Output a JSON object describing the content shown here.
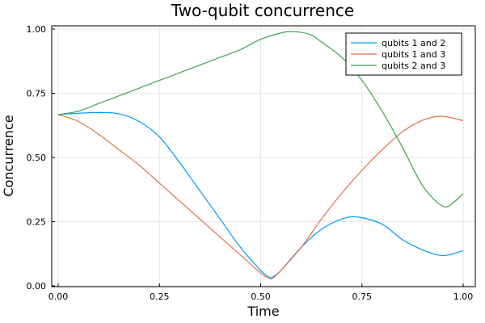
{
  "chart_data": {
    "type": "line",
    "title": "Two-qubit concurrence",
    "xlabel": "Time",
    "ylabel": "Concurrence",
    "xlim": [
      0,
      1
    ],
    "ylim": [
      0,
      1
    ],
    "xticks": [
      0,
      0.25,
      0.5,
      0.75,
      1
    ],
    "xtick_labels": [
      "0.00",
      "0.25",
      "0.50",
      "0.75",
      "1.00"
    ],
    "yticks": [
      0,
      0.25,
      0.5,
      0.75,
      1
    ],
    "ytick_labels": [
      "0.00",
      "0.25",
      "0.50",
      "0.75",
      "1.00"
    ],
    "grid": true,
    "legend_position": "top-right",
    "series": [
      {
        "name": "qubits 1 and 2",
        "color": "#009AFA",
        "x": [
          0,
          0.05,
          0.1,
          0.15,
          0.2,
          0.25,
          0.3,
          0.35,
          0.4,
          0.45,
          0.5,
          0.52,
          0.53,
          0.55,
          0.6,
          0.65,
          0.7,
          0.74,
          0.8,
          0.85,
          0.9,
          0.95,
          1.0
        ],
        "y": [
          0.667,
          0.672,
          0.675,
          0.67,
          0.64,
          0.58,
          0.48,
          0.37,
          0.26,
          0.15,
          0.06,
          0.035,
          0.035,
          0.06,
          0.15,
          0.22,
          0.26,
          0.268,
          0.24,
          0.18,
          0.14,
          0.118,
          0.137
        ]
      },
      {
        "name": "qubits 1 and 3",
        "color": "#E36F47",
        "x": [
          0,
          0.05,
          0.1,
          0.15,
          0.2,
          0.25,
          0.3,
          0.35,
          0.4,
          0.45,
          0.5,
          0.52,
          0.53,
          0.55,
          0.6,
          0.65,
          0.7,
          0.75,
          0.8,
          0.85,
          0.9,
          0.94,
          0.97,
          1.0
        ],
        "y": [
          0.667,
          0.64,
          0.59,
          0.53,
          0.47,
          0.4,
          0.33,
          0.26,
          0.19,
          0.12,
          0.05,
          0.03,
          0.03,
          0.06,
          0.15,
          0.26,
          0.36,
          0.45,
          0.53,
          0.6,
          0.645,
          0.66,
          0.655,
          0.643
        ]
      },
      {
        "name": "qubits 2 and 3",
        "color": "#3EA44E",
        "x": [
          0,
          0.05,
          0.1,
          0.15,
          0.2,
          0.25,
          0.3,
          0.35,
          0.4,
          0.45,
          0.5,
          0.55,
          0.58,
          0.62,
          0.65,
          0.7,
          0.75,
          0.8,
          0.85,
          0.9,
          0.95,
          0.98,
          1.0
        ],
        "y": [
          0.667,
          0.68,
          0.71,
          0.74,
          0.77,
          0.8,
          0.83,
          0.86,
          0.89,
          0.92,
          0.96,
          0.985,
          0.99,
          0.98,
          0.95,
          0.89,
          0.8,
          0.68,
          0.54,
          0.39,
          0.31,
          0.33,
          0.36
        ]
      }
    ]
  }
}
